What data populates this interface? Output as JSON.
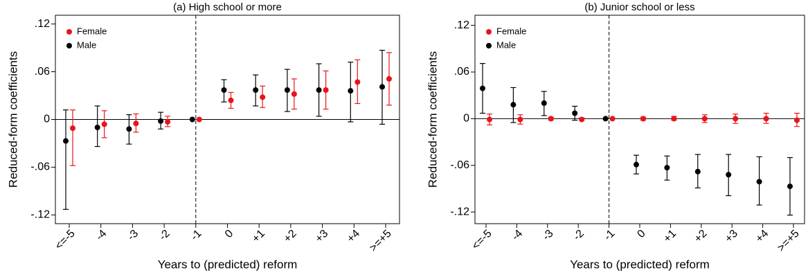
{
  "chart_data": [
    {
      "type": "errorbar",
      "title": "(a) High school or more",
      "x_label": "Years to (predicted) reform",
      "y_label": "Reduced-form coefficients",
      "categories": [
        "<=-5",
        "-4",
        "-3",
        "-2",
        "-1",
        "0",
        "+1",
        "+2",
        "+3",
        "+4",
        ">=+5"
      ],
      "ylim": [
        -0.131,
        0.131
      ],
      "yticks": [
        {
          "value": -0.12,
          "label": "-.12"
        },
        {
          "value": -0.06,
          "label": "-.06"
        },
        0,
        {
          "value": 0.06,
          "label": ".06"
        },
        {
          "value": 0.12,
          "label": ".12"
        }
      ],
      "hline": 0,
      "vline": "-1",
      "legend": "top-left",
      "series": [
        {
          "name": "Female",
          "color": "#e8141c",
          "values": [
            -0.011,
            -0.006,
            -0.005,
            -0.003,
            0,
            0.024,
            0.028,
            0.032,
            0.037,
            0.047,
            0.051
          ],
          "lower": [
            -0.058,
            -0.023,
            -0.016,
            -0.009,
            null,
            0.014,
            0.015,
            0.013,
            0.013,
            0.02,
            0.018
          ],
          "upper": [
            0.012,
            0.011,
            0.007,
            0.004,
            null,
            0.034,
            0.042,
            0.051,
            0.061,
            0.075,
            0.084
          ]
        },
        {
          "name": "Male",
          "color": "#000000",
          "values": [
            -0.027,
            -0.01,
            -0.012,
            -0.002,
            0,
            0.037,
            0.037,
            0.037,
            0.037,
            0.036,
            0.041
          ],
          "lower": [
            -0.113,
            -0.034,
            -0.031,
            -0.012,
            null,
            0.022,
            0.017,
            0.01,
            0.004,
            -0.003,
            -0.006
          ],
          "upper": [
            0.012,
            0.017,
            0.006,
            0.009,
            null,
            0.05,
            0.056,
            0.063,
            0.07,
            0.072,
            0.087
          ]
        }
      ]
    },
    {
      "type": "errorbar",
      "title": "(b) Junior school or less",
      "x_label": "Years to (predicted) reform",
      "y_label": "Reduced-form coefficients",
      "categories": [
        "<=-5",
        "-4",
        "-3",
        "-2",
        "-1",
        "0",
        "+1",
        "+2",
        "+3",
        "+4",
        ">=+5"
      ],
      "ylim": [
        -0.135,
        0.133
      ],
      "yticks": [
        {
          "value": -0.12,
          "label": "-.12"
        },
        {
          "value": -0.06,
          "label": "-.06"
        },
        0,
        {
          "value": 0.06,
          "label": ".06"
        },
        {
          "value": 0.12,
          "label": ".12"
        }
      ],
      "hline": 0,
      "vline": "-1",
      "legend": "top-left",
      "series": [
        {
          "name": "Female",
          "color": "#e8141c",
          "values": [
            -0.001,
            -0.001,
            0,
            -0.001,
            0,
            0,
            0,
            0,
            0,
            0,
            -0.002
          ],
          "lower": [
            -0.008,
            -0.007,
            -0.002,
            -0.002,
            null,
            -0.002,
            -0.002,
            -0.005,
            -0.006,
            -0.006,
            -0.01
          ],
          "upper": [
            0.006,
            0.005,
            0.002,
            0.001,
            null,
            0.002,
            0.003,
            0.005,
            0.006,
            0.007,
            0.007
          ]
        },
        {
          "name": "Male",
          "color": "#000000",
          "values": [
            0.039,
            0.018,
            0.02,
            0.007,
            0,
            -0.059,
            -0.063,
            -0.068,
            -0.072,
            -0.081,
            -0.087
          ],
          "lower": [
            0.007,
            -0.005,
            0.004,
            -0.002,
            null,
            -0.071,
            -0.079,
            -0.089,
            -0.099,
            -0.111,
            -0.124
          ],
          "upper": [
            0.071,
            0.04,
            0.035,
            0.016,
            null,
            -0.047,
            -0.048,
            -0.046,
            -0.046,
            -0.049,
            -0.05
          ]
        }
      ]
    }
  ]
}
